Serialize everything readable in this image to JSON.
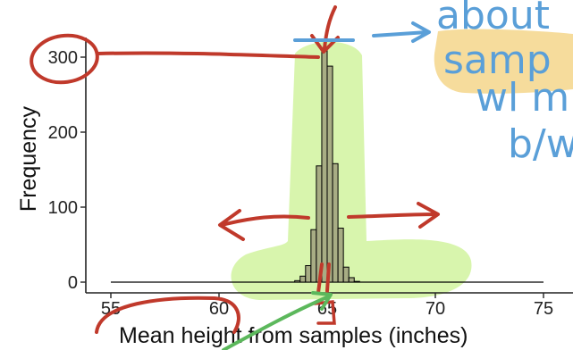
{
  "chart_data": {
    "type": "bar",
    "title": "",
    "xlabel": "Mean height from samples (inches)",
    "ylabel": "Frequency",
    "xlim": [
      55,
      75
    ],
    "ylim": [
      0,
      300
    ],
    "x_ticks": [
      55,
      60,
      65,
      70,
      75
    ],
    "y_ticks": [
      0,
      100,
      200,
      300
    ],
    "grid": false,
    "legend": "none",
    "bin_width": 0.25,
    "bins": [
      {
        "x0": 63.5,
        "value": 2
      },
      {
        "x0": 63.75,
        "value": 8
      },
      {
        "x0": 64.0,
        "value": 22
      },
      {
        "x0": 64.25,
        "value": 70
      },
      {
        "x0": 64.5,
        "value": 155
      },
      {
        "x0": 64.75,
        "value": 312
      },
      {
        "x0": 65.0,
        "value": 288
      },
      {
        "x0": 65.25,
        "value": 158
      },
      {
        "x0": 65.5,
        "value": 72
      },
      {
        "x0": 65.75,
        "value": 20
      },
      {
        "x0": 66.0,
        "value": 6
      },
      {
        "x0": 66.25,
        "value": 1
      }
    ],
    "bar_color": "#a8ad84",
    "baseline_color": "#000000"
  },
  "annotations": {
    "handwriting_lines": [
      "about",
      "samp",
      "wl m",
      "b/w"
    ],
    "ink_red": "#c0392b",
    "ink_blue": "#5a9fd8",
    "ink_green": "#5cb85c",
    "highlight_green": "#d4f4a4",
    "highlight_yellow": "#f6dc9c"
  }
}
